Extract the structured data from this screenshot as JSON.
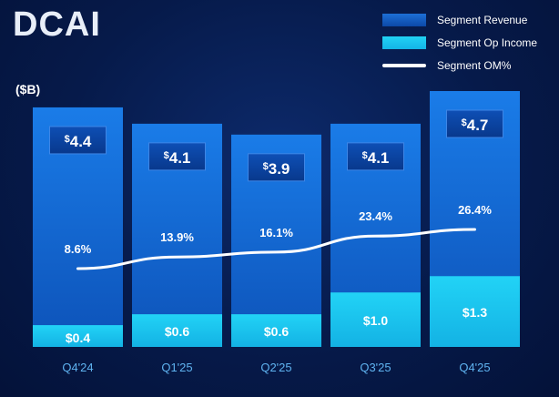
{
  "title": "DCAI",
  "unit_label": "($B)",
  "legend": [
    {
      "label": "Segment Revenue",
      "key": "revenue"
    },
    {
      "label": "Segment Op Income",
      "key": "op_income"
    },
    {
      "label": "Segment OM%",
      "key": "om"
    }
  ],
  "colors": {
    "revenue": "#1570d8",
    "op_income": "#1fc8f2",
    "om_line": "#ffffff",
    "revenue_label_box": "#0a3f9a"
  },
  "chart_data": {
    "type": "bar",
    "title": "DCAI",
    "ylabel": "($B)",
    "xlabel": "",
    "categories": [
      "Q4'24",
      "Q1'25",
      "Q2'25",
      "Q3'25",
      "Q4'25"
    ],
    "series": [
      {
        "name": "Segment Revenue",
        "values": [
          4.4,
          4.1,
          3.9,
          4.1,
          4.7
        ],
        "labels": [
          "$4.4",
          "$4.1",
          "$3.9",
          "$4.1",
          "$4.7"
        ]
      },
      {
        "name": "Segment Op Income",
        "values": [
          0.4,
          0.6,
          0.6,
          1.0,
          1.3
        ],
        "labels": [
          "$0.4",
          "$0.6",
          "$0.6",
          "$1.0",
          "$1.3"
        ]
      },
      {
        "name": "Segment OM%",
        "type": "line",
        "values": [
          8.6,
          13.9,
          16.1,
          23.4,
          26.4
        ],
        "labels": [
          "8.6%",
          "13.9%",
          "16.1%",
          "23.4%",
          "26.4%"
        ]
      }
    ],
    "ylim": [
      0,
      4.7
    ],
    "grid": false,
    "legend_position": "top-right"
  }
}
